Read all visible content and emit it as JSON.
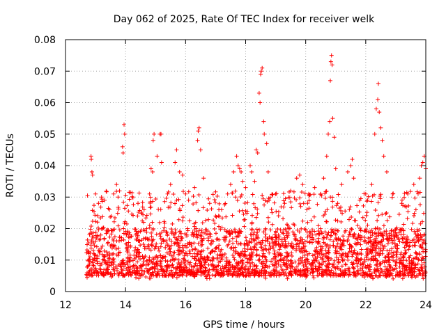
{
  "chart_data": {
    "type": "scatter",
    "title": "Day 062 of 2025, Rate Of TEC Index for receiver welk",
    "xlabel": "GPS time / hours",
    "ylabel": "ROTI / TECUs",
    "xlim": [
      12,
      24
    ],
    "ylim": [
      0,
      0.08
    ],
    "x_ticks": [
      12,
      14,
      16,
      18,
      20,
      22,
      24
    ],
    "x_tick_labels": [
      "12",
      "14",
      "16",
      "18",
      "20",
      "22",
      "24"
    ],
    "y_ticks": [
      0,
      0.01,
      0.02,
      0.03,
      0.04,
      0.05,
      0.06,
      0.07,
      0.08
    ],
    "y_tick_labels": [
      "0",
      "0.01",
      "0.02",
      "0.03",
      "0.04",
      "0.05",
      "0.06",
      "0.07",
      "0.08"
    ],
    "grid": true,
    "marker": "+",
    "color": "#ff0000",
    "x_range_of_data": [
      12.7,
      24.0
    ],
    "baseline_band": [
      0.005,
      0.02
    ],
    "series": [
      {
        "name": "ROTI",
        "points": [
          [
            12.85,
            0.043
          ],
          [
            12.86,
            0.042
          ],
          [
            12.88,
            0.038
          ],
          [
            12.9,
            0.037
          ],
          [
            13.0,
            0.031
          ],
          [
            13.1,
            0.028
          ],
          [
            13.2,
            0.03
          ],
          [
            13.3,
            0.029
          ],
          [
            13.6,
            0.031
          ],
          [
            13.7,
            0.034
          ],
          [
            13.75,
            0.03
          ],
          [
            13.8,
            0.032
          ],
          [
            13.9,
            0.046
          ],
          [
            13.92,
            0.044
          ],
          [
            13.95,
            0.053
          ],
          [
            13.97,
            0.05
          ],
          [
            14.4,
            0.024
          ],
          [
            14.6,
            0.022
          ],
          [
            14.8,
            0.031
          ],
          [
            14.85,
            0.039
          ],
          [
            14.9,
            0.038
          ],
          [
            14.92,
            0.048
          ],
          [
            14.95,
            0.05
          ],
          [
            15.05,
            0.043
          ],
          [
            15.15,
            0.05
          ],
          [
            15.18,
            0.05
          ],
          [
            15.2,
            0.041
          ],
          [
            15.4,
            0.031
          ],
          [
            15.5,
            0.034
          ],
          [
            15.65,
            0.041
          ],
          [
            15.7,
            0.045
          ],
          [
            15.8,
            0.038
          ],
          [
            15.9,
            0.037
          ],
          [
            16.0,
            0.031
          ],
          [
            16.1,
            0.029
          ],
          [
            16.3,
            0.033
          ],
          [
            16.4,
            0.048
          ],
          [
            16.42,
            0.051
          ],
          [
            16.45,
            0.052
          ],
          [
            16.5,
            0.045
          ],
          [
            16.6,
            0.036
          ],
          [
            16.8,
            0.028
          ],
          [
            17.0,
            0.024
          ],
          [
            17.2,
            0.026
          ],
          [
            17.4,
            0.031
          ],
          [
            17.5,
            0.034
          ],
          [
            17.6,
            0.038
          ],
          [
            17.7,
            0.043
          ],
          [
            17.75,
            0.04
          ],
          [
            17.8,
            0.039
          ],
          [
            17.85,
            0.038
          ],
          [
            17.9,
            0.035
          ],
          [
            18.0,
            0.033
          ],
          [
            18.15,
            0.04
          ],
          [
            18.2,
            0.038
          ],
          [
            18.3,
            0.035
          ],
          [
            18.35,
            0.045
          ],
          [
            18.4,
            0.044
          ],
          [
            18.45,
            0.063
          ],
          [
            18.48,
            0.06
          ],
          [
            18.5,
            0.069
          ],
          [
            18.52,
            0.07
          ],
          [
            18.55,
            0.071
          ],
          [
            18.6,
            0.054
          ],
          [
            18.62,
            0.05
          ],
          [
            18.7,
            0.047
          ],
          [
            18.75,
            0.038
          ],
          [
            19.0,
            0.031
          ],
          [
            19.3,
            0.028
          ],
          [
            19.5,
            0.032
          ],
          [
            19.7,
            0.036
          ],
          [
            19.8,
            0.037
          ],
          [
            19.9,
            0.034
          ],
          [
            20.1,
            0.031
          ],
          [
            20.3,
            0.033
          ],
          [
            20.5,
            0.031
          ],
          [
            20.6,
            0.036
          ],
          [
            20.7,
            0.043
          ],
          [
            20.75,
            0.05
          ],
          [
            20.8,
            0.054
          ],
          [
            20.82,
            0.067
          ],
          [
            20.84,
            0.073
          ],
          [
            20.86,
            0.075
          ],
          [
            20.88,
            0.072
          ],
          [
            20.9,
            0.055
          ],
          [
            20.95,
            0.049
          ],
          [
            21.0,
            0.039
          ],
          [
            21.2,
            0.034
          ],
          [
            21.4,
            0.038
          ],
          [
            21.5,
            0.04
          ],
          [
            21.55,
            0.042
          ],
          [
            21.6,
            0.036
          ],
          [
            21.8,
            0.029
          ],
          [
            22.0,
            0.031
          ],
          [
            22.2,
            0.034
          ],
          [
            22.3,
            0.05
          ],
          [
            22.35,
            0.058
          ],
          [
            22.4,
            0.061
          ],
          [
            22.42,
            0.066
          ],
          [
            22.45,
            0.057
          ],
          [
            22.5,
            0.052
          ],
          [
            22.55,
            0.048
          ],
          [
            22.6,
            0.043
          ],
          [
            22.7,
            0.038
          ],
          [
            22.9,
            0.031
          ],
          [
            23.2,
            0.028
          ],
          [
            23.4,
            0.031
          ],
          [
            23.6,
            0.034
          ],
          [
            23.8,
            0.036
          ],
          [
            23.85,
            0.04
          ],
          [
            23.9,
            0.041
          ],
          [
            23.95,
            0.043
          ],
          [
            24.0,
            0.039
          ]
        ]
      }
    ]
  }
}
